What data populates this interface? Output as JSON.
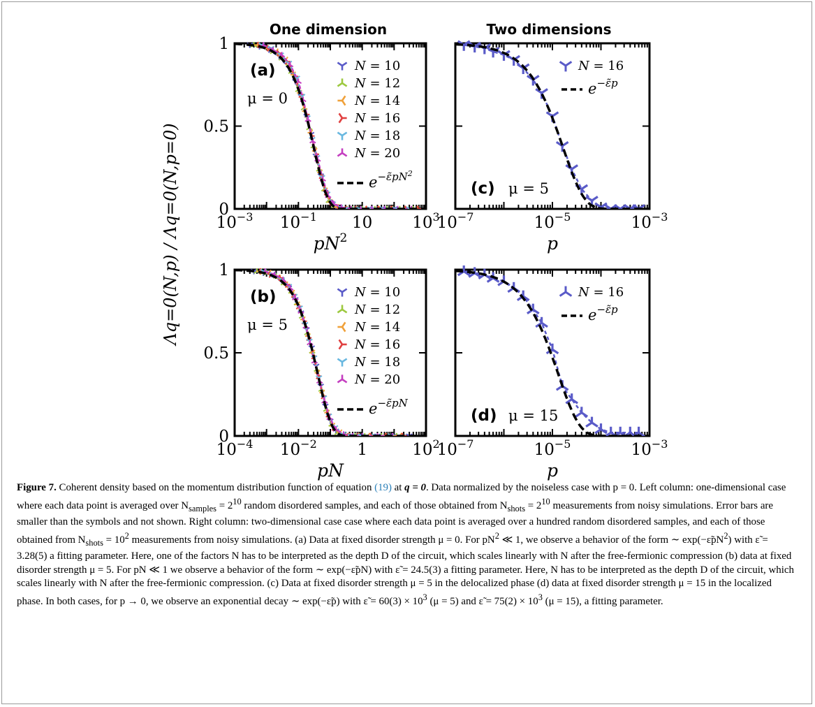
{
  "columns": {
    "left_title": "One dimension",
    "right_title": "Two dimensions"
  },
  "y_axis_label": "Λq=0(N,p) / Λq=0(N,p=0)",
  "legend_1d": [
    {
      "label": "N = 10",
      "color": "#5a5bc8",
      "marker": "tri_down"
    },
    {
      "label": "N = 12",
      "color": "#9dc940",
      "marker": "tri_up"
    },
    {
      "label": "N = 14",
      "color": "#f0a13a",
      "marker": "tri_left"
    },
    {
      "label": "N = 16",
      "color": "#e04040",
      "marker": "tri_right"
    },
    {
      "label": "N = 18",
      "color": "#69b8e0",
      "marker": "tri_down"
    },
    {
      "label": "N = 20",
      "color": "#c43fc0",
      "marker": "tri_up"
    }
  ],
  "chart_data": [
    {
      "id": "a",
      "type": "line",
      "panel_label": "(a)",
      "param_label": "μ = 0",
      "xlabel": "pN2",
      "xscale": "log",
      "xlim": [
        0.001,
        1000
      ],
      "ylim": [
        0,
        1
      ],
      "xticks": [
        "10−3",
        "10−1",
        "10",
        "103"
      ],
      "yticks": [
        "0",
        "0.5",
        "1"
      ],
      "fit_label": "e−ε̃pN2",
      "fit": {
        "k": 3.28
      },
      "series": [
        {
          "name": "N = 10",
          "x": [
            0.003,
            0.006,
            0.012,
            0.025,
            0.05,
            0.08,
            0.12,
            0.18,
            0.25,
            0.35,
            0.5,
            0.7,
            1.0,
            1.5,
            2,
            4,
            8,
            16,
            40,
            100,
            300
          ],
          "y": [
            0.99,
            0.98,
            0.96,
            0.92,
            0.85,
            0.77,
            0.68,
            0.56,
            0.45,
            0.32,
            0.2,
            0.1,
            0.04,
            0.01,
            0.0,
            0.0,
            0.0,
            0.0,
            0.0,
            0.0,
            0.0
          ]
        },
        {
          "name": "N = 12",
          "x": [
            0.004,
            0.008,
            0.016,
            0.03,
            0.06,
            0.1,
            0.15,
            0.22,
            0.3,
            0.45,
            0.65,
            0.9,
            1.3,
            2.2,
            5,
            10,
            25,
            60,
            150,
            400
          ],
          "y": [
            0.99,
            0.98,
            0.95,
            0.91,
            0.83,
            0.72,
            0.61,
            0.49,
            0.38,
            0.24,
            0.12,
            0.05,
            0.02,
            0.0,
            0.0,
            0.0,
            0.0,
            0.0,
            0.0,
            0.0
          ]
        },
        {
          "name": "N = 14",
          "x": [
            0.005,
            0.01,
            0.02,
            0.04,
            0.07,
            0.11,
            0.16,
            0.24,
            0.33,
            0.48,
            0.7,
            1.0,
            1.6,
            3,
            6,
            12,
            30,
            80,
            200,
            500
          ],
          "y": [
            0.99,
            0.97,
            0.95,
            0.9,
            0.81,
            0.7,
            0.59,
            0.46,
            0.35,
            0.22,
            0.11,
            0.04,
            0.01,
            0.0,
            0.0,
            0.0,
            0.0,
            0.0,
            0.0,
            0.0
          ]
        },
        {
          "name": "N = 16",
          "x": [
            0.006,
            0.012,
            0.025,
            0.045,
            0.08,
            0.12,
            0.18,
            0.26,
            0.36,
            0.52,
            0.75,
            1.1,
            1.8,
            3.5,
            7,
            15,
            35,
            90,
            250,
            600
          ],
          "y": [
            0.99,
            0.97,
            0.94,
            0.89,
            0.8,
            0.69,
            0.57,
            0.44,
            0.33,
            0.2,
            0.1,
            0.04,
            0.01,
            0.0,
            0.0,
            0.0,
            0.0,
            0.0,
            0.0,
            0.0
          ]
        },
        {
          "name": "N = 18",
          "x": [
            0.007,
            0.014,
            0.028,
            0.05,
            0.09,
            0.13,
            0.19,
            0.27,
            0.38,
            0.55,
            0.8,
            1.2,
            2,
            4,
            8,
            18,
            45,
            110,
            300
          ],
          "y": [
            0.99,
            0.97,
            0.93,
            0.88,
            0.79,
            0.68,
            0.55,
            0.42,
            0.31,
            0.19,
            0.09,
            0.03,
            0.01,
            0.0,
            0.0,
            0.0,
            0.0,
            0.0,
            0.0
          ]
        },
        {
          "name": "N = 20",
          "x": [
            0.008,
            0.016,
            0.03,
            0.055,
            0.1,
            0.14,
            0.2,
            0.28,
            0.4,
            0.58,
            0.85,
            1.3,
            2.2,
            4.5,
            9,
            20,
            50,
            130,
            350
          ],
          "y": [
            0.99,
            0.96,
            0.93,
            0.87,
            0.77,
            0.66,
            0.54,
            0.41,
            0.3,
            0.18,
            0.08,
            0.03,
            0.01,
            0.0,
            0.0,
            0.0,
            0.0,
            0.0,
            0.0
          ]
        }
      ]
    },
    {
      "id": "c",
      "type": "line",
      "panel_label": "(c)",
      "param_label": "μ = 5",
      "xlabel": "p",
      "xscale": "log",
      "xlim": [
        1e-07,
        0.001
      ],
      "ylim": [
        0,
        1
      ],
      "xticks": [
        "10−7",
        "10−5",
        "10−3"
      ],
      "yticks": [
        "",
        "",
        ""
      ],
      "fit_label": "e−ε̃p",
      "fit": {
        "k": 60000
      },
      "series": [
        {
          "name": "N = 16",
          "x": [
            1.5e-07,
            2.5e-07,
            4e-07,
            6e-07,
            1e-06,
            1.6e-06,
            2.5e-06,
            4e-06,
            6e-06,
            1e-05,
            1.6e-05,
            2.5e-05,
            4e-05,
            6.5e-05,
            0.0001,
            0.00016,
            0.00025,
            0.0004,
            0.0006
          ],
          "y": [
            0.99,
            0.98,
            0.97,
            0.95,
            0.93,
            0.9,
            0.85,
            0.78,
            0.7,
            0.56,
            0.38,
            0.24,
            0.12,
            0.05,
            0.01,
            0.0,
            0.0,
            0.0,
            0.0
          ]
        }
      ]
    },
    {
      "id": "b",
      "type": "line",
      "panel_label": "(b)",
      "param_label": "μ = 5",
      "xlabel": "pN",
      "xscale": "log",
      "xlim": [
        0.0001,
        100
      ],
      "ylim": [
        0,
        1
      ],
      "xticks": [
        "10−4",
        "10−2",
        "1",
        "102"
      ],
      "yticks": [
        "0",
        "0.5",
        "1"
      ],
      "fit_label": "e−ε̃pN",
      "fit": {
        "k": 24.5
      },
      "series": [
        {
          "name": "N = 10",
          "x": [
            0.0004,
            0.0008,
            0.0015,
            0.003,
            0.005,
            0.008,
            0.012,
            0.018,
            0.026,
            0.036,
            0.05,
            0.07,
            0.1,
            0.15,
            0.25,
            0.5,
            1,
            3,
            10,
            30
          ],
          "y": [
            0.99,
            0.98,
            0.97,
            0.93,
            0.89,
            0.82,
            0.74,
            0.64,
            0.53,
            0.42,
            0.3,
            0.18,
            0.09,
            0.03,
            0.01,
            0.0,
            0.0,
            0.0,
            0.0,
            0.0
          ]
        },
        {
          "name": "N = 12",
          "x": [
            0.0005,
            0.001,
            0.002,
            0.0035,
            0.006,
            0.009,
            0.013,
            0.019,
            0.027,
            0.038,
            0.053,
            0.075,
            0.11,
            0.17,
            0.3,
            0.6,
            1.2,
            4,
            12
          ],
          "y": [
            0.99,
            0.98,
            0.96,
            0.92,
            0.87,
            0.8,
            0.72,
            0.62,
            0.51,
            0.4,
            0.28,
            0.16,
            0.07,
            0.02,
            0.0,
            0.0,
            0.0,
            0.0,
            0.0
          ]
        },
        {
          "name": "N = 14",
          "x": [
            0.0006,
            0.0012,
            0.0024,
            0.004,
            0.0065,
            0.0095,
            0.014,
            0.02,
            0.028,
            0.04,
            0.056,
            0.08,
            0.12,
            0.2,
            0.35,
            0.7,
            1.5,
            5,
            15
          ],
          "y": [
            0.99,
            0.98,
            0.95,
            0.91,
            0.86,
            0.79,
            0.7,
            0.6,
            0.5,
            0.38,
            0.26,
            0.14,
            0.06,
            0.02,
            0.0,
            0.0,
            0.0,
            0.0,
            0.0
          ]
        },
        {
          "name": "N = 16",
          "x": [
            0.0007,
            0.0014,
            0.0028,
            0.0045,
            0.007,
            0.01,
            0.015,
            0.021,
            0.03,
            0.042,
            0.06,
            0.085,
            0.13,
            0.22,
            0.4,
            0.8,
            2,
            6,
            20
          ],
          "y": [
            0.99,
            0.97,
            0.95,
            0.91,
            0.85,
            0.78,
            0.69,
            0.59,
            0.48,
            0.36,
            0.24,
            0.13,
            0.05,
            0.01,
            0.0,
            0.0,
            0.0,
            0.0,
            0.0
          ]
        },
        {
          "name": "N = 18",
          "x": [
            0.0008,
            0.0016,
            0.003,
            0.005,
            0.0075,
            0.011,
            0.016,
            0.022,
            0.031,
            0.044,
            0.063,
            0.09,
            0.14,
            0.24,
            0.45,
            0.9,
            2.5,
            8
          ],
          "y": [
            0.99,
            0.97,
            0.94,
            0.9,
            0.84,
            0.77,
            0.67,
            0.57,
            0.47,
            0.35,
            0.23,
            0.12,
            0.05,
            0.01,
            0.0,
            0.0,
            0.0,
            0.0
          ]
        },
        {
          "name": "N = 20",
          "x": [
            0.0009,
            0.0018,
            0.0033,
            0.0055,
            0.008,
            0.012,
            0.017,
            0.023,
            0.032,
            0.046,
            0.066,
            0.095,
            0.15,
            0.26,
            0.5,
            1,
            3,
            9
          ],
          "y": [
            0.99,
            0.97,
            0.94,
            0.89,
            0.83,
            0.75,
            0.66,
            0.56,
            0.45,
            0.33,
            0.21,
            0.11,
            0.04,
            0.01,
            0.0,
            0.0,
            0.0,
            0.0
          ]
        }
      ]
    },
    {
      "id": "d",
      "type": "line",
      "panel_label": "(d)",
      "param_label": "μ = 15",
      "xlabel": "p",
      "xscale": "log",
      "xlim": [
        1e-07,
        0.001
      ],
      "ylim": [
        0,
        1
      ],
      "xticks": [
        "10−7",
        "10−5",
        "10−3"
      ],
      "yticks": [
        "",
        "",
        ""
      ],
      "fit_label": "e−ε̃p",
      "fit": {
        "k": 75000
      },
      "series": [
        {
          "name": "N = 16",
          "x": [
            1.5e-07,
            2.5e-07,
            4e-07,
            6e-07,
            1e-06,
            1.6e-06,
            2.5e-06,
            4e-06,
            6e-06,
            1e-05,
            1.6e-05,
            2.5e-05,
            4e-05,
            6.5e-05,
            0.0001,
            0.00016,
            0.00025,
            0.0004,
            0.0006
          ],
          "y": [
            0.99,
            0.98,
            0.97,
            0.95,
            0.93,
            0.89,
            0.84,
            0.76,
            0.68,
            0.52,
            0.3,
            0.22,
            0.14,
            0.08,
            0.04,
            0.02,
            0.02,
            0.02,
            0.02
          ]
        }
      ]
    }
  ],
  "caption": {
    "fig_label": "Figure 7.",
    "segments": [
      " Coherent density based on the momentum distribution function of equation ",
      "(19)",
      " at ",
      "q = 0",
      ". Data normalized by the noiseless case with p = 0. Left column: one-dimensional case where each data point is averaged over N",
      "samples",
      " = 2",
      "10",
      " random disordered samples, and each of those obtained from N",
      "shots",
      " = 2",
      "10",
      " measurements from noisy simulations. Error bars are smaller than the symbols and not shown. Right column: two-dimensional case case where each data point is averaged over a hundred random disordered samples, and each of those obtained from N",
      "shots",
      " = 10",
      "2",
      " measurements from noisy simulations. (a) Data at fixed disorder strength μ = 0. For pN",
      "2",
      " ≪ 1, we observe a behavior of the form ∼ exp(−ε̃pN",
      "2",
      ") with ε̃ = 3.28(5) a fitting parameter. Here, one of the factors N has to be interpreted as the depth D of the circuit, which scales linearly with N after the free-fermionic compression (b) data at fixed disorder strength μ = 5. For pN ≪ 1 we observe a behavior of the form ∼ exp(−ε̃pN) with ε̃ = 24.5(3) a fitting parameter. Here, N has to be interpreted as the depth D of the circuit, which scales linearly with N after the free-fermionic compression. (c) Data at fixed disorder strength μ = 5 in the delocalized phase (d) data at fixed disorder strength μ = 15 in the localized phase. In both cases, for p → 0, we observe an exponential decay ∼ exp(−ε̃p) with ε̃ = 60(3) × 10",
      "3",
      " (μ = 5) and ε̃ = 75(2) × 10",
      "3",
      " (μ = 15), a fitting parameter."
    ]
  }
}
